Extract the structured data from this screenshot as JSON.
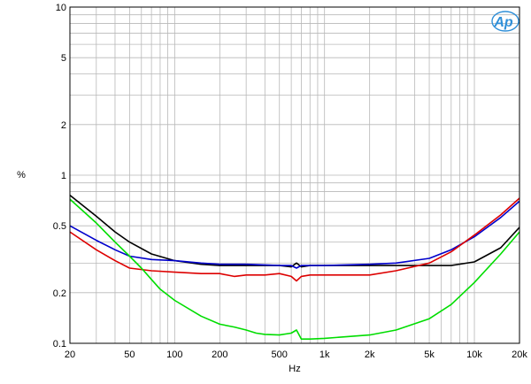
{
  "chart_data": {
    "type": "line",
    "title": "",
    "xlabel": "Hz",
    "ylabel": "%",
    "x_scale": "log",
    "y_scale": "log",
    "xlim": [
      20,
      20000
    ],
    "ylim": [
      0.1,
      10
    ],
    "grid": true,
    "x_ticks": [
      {
        "value": 20,
        "label": "20"
      },
      {
        "value": 50,
        "label": "50"
      },
      {
        "value": 100,
        "label": "100"
      },
      {
        "value": 200,
        "label": "200"
      },
      {
        "value": 500,
        "label": "500"
      },
      {
        "value": 1000,
        "label": "1k"
      },
      {
        "value": 2000,
        "label": "2k"
      },
      {
        "value": 5000,
        "label": "5k"
      },
      {
        "value": 10000,
        "label": "10k"
      },
      {
        "value": 20000,
        "label": "20k"
      }
    ],
    "y_ticks": [
      {
        "value": 0.1,
        "label": "0.1"
      },
      {
        "value": 0.2,
        "label": "0.2"
      },
      {
        "value": 0.5,
        "label": "0.5"
      },
      {
        "value": 1,
        "label": "1"
      },
      {
        "value": 2,
        "label": "2"
      },
      {
        "value": 5,
        "label": "5"
      },
      {
        "value": 10,
        "label": "10"
      }
    ],
    "logo": "Ap",
    "series": [
      {
        "color": "#000000",
        "x": [
          20,
          30,
          40,
          50,
          70,
          100,
          150,
          200,
          300,
          400,
          500,
          600,
          650,
          700,
          800,
          1000,
          2000,
          3000,
          5000,
          7000,
          10000,
          15000,
          20000
        ],
        "y": [
          0.76,
          0.57,
          0.46,
          0.4,
          0.34,
          0.31,
          0.295,
          0.29,
          0.29,
          0.29,
          0.29,
          0.285,
          0.3,
          0.285,
          0.29,
          0.29,
          0.29,
          0.29,
          0.29,
          0.29,
          0.305,
          0.37,
          0.49
        ]
      },
      {
        "color": "#0000cc",
        "x": [
          20,
          30,
          40,
          50,
          70,
          100,
          150,
          200,
          300,
          500,
          600,
          650,
          700,
          800,
          1000,
          2000,
          3000,
          5000,
          7000,
          10000,
          15000,
          20000
        ],
        "y": [
          0.5,
          0.41,
          0.36,
          0.33,
          0.315,
          0.31,
          0.3,
          0.295,
          0.295,
          0.29,
          0.29,
          0.28,
          0.29,
          0.29,
          0.29,
          0.295,
          0.3,
          0.32,
          0.36,
          0.43,
          0.56,
          0.7
        ]
      },
      {
        "color": "#dd0000",
        "x": [
          20,
          30,
          40,
          50,
          70,
          100,
          150,
          200,
          250,
          300,
          400,
          500,
          600,
          650,
          700,
          800,
          1000,
          2000,
          3000,
          5000,
          7000,
          10000,
          15000,
          20000
        ],
        "y": [
          0.46,
          0.36,
          0.31,
          0.28,
          0.27,
          0.265,
          0.26,
          0.26,
          0.25,
          0.255,
          0.255,
          0.26,
          0.25,
          0.235,
          0.25,
          0.255,
          0.255,
          0.255,
          0.27,
          0.3,
          0.35,
          0.44,
          0.58,
          0.73
        ]
      },
      {
        "color": "#00dd00",
        "x": [
          20,
          30,
          40,
          50,
          60,
          70,
          80,
          100,
          150,
          200,
          250,
          300,
          350,
          400,
          500,
          600,
          650,
          700,
          800,
          1000,
          2000,
          3000,
          5000,
          7000,
          10000,
          15000,
          20000
        ],
        "y": [
          0.72,
          0.52,
          0.4,
          0.33,
          0.28,
          0.24,
          0.21,
          0.18,
          0.145,
          0.13,
          0.125,
          0.12,
          0.115,
          0.113,
          0.112,
          0.115,
          0.12,
          0.106,
          0.106,
          0.107,
          0.112,
          0.12,
          0.14,
          0.17,
          0.23,
          0.34,
          0.46
        ]
      }
    ]
  }
}
